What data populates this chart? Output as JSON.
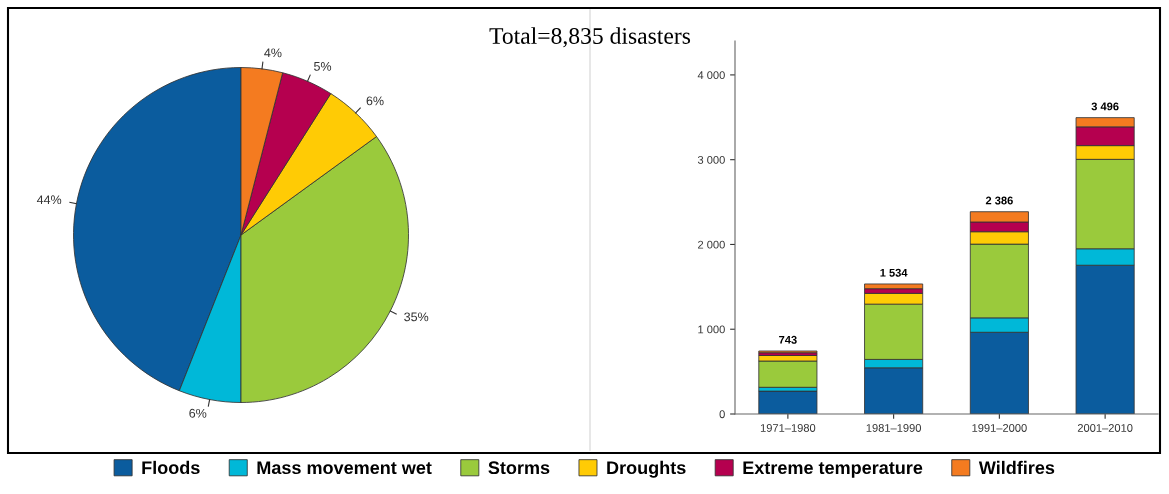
{
  "chart_data": [
    {
      "type": "pie",
      "categories": [
        "Floods",
        "Mass movement wet",
        "Storms",
        "Droughts",
        "Extreme temperature",
        "Wildfires"
      ],
      "values": [
        44,
        6,
        35,
        6,
        5,
        4
      ],
      "colors": [
        "#0b5c9e",
        "#00b8d8",
        "#9aca3c",
        "#ffcb05",
        "#b5004f",
        "#f47b20"
      ],
      "value_labels": [
        "44%",
        "6%",
        "35%",
        "6%",
        "5%",
        "4%"
      ],
      "legend": "bottom"
    },
    {
      "type": "bar",
      "title": "Total=8,835 disasters",
      "stacked": true,
      "categories": [
        "1971–1980",
        "1981–1990",
        "1991–2000",
        "2001–2010"
      ],
      "series": [
        {
          "color": "#0b5c9e",
          "values": [
            270,
            545,
            964,
            1755
          ]
        },
        {
          "color": "#00b8d8",
          "values": [
            45,
            99,
            170,
            194
          ]
        },
        {
          "color": "#9aca3c",
          "values": [
            310,
            652,
            870,
            1055
          ]
        },
        {
          "color": "#ffcb05",
          "values": [
            65,
            127,
            146,
            162
          ]
        },
        {
          "color": "#b5004f",
          "values": [
            33,
            55,
            115,
            221
          ]
        },
        {
          "color": "#f47b20",
          "values": [
            20,
            56,
            121,
            109
          ]
        }
      ],
      "totals": [
        "743",
        "1 534",
        "2 386",
        "3 496"
      ],
      "ylim": [
        0,
        4400
      ],
      "yticks": [
        0,
        {
          "value": 1000,
          "label": "1 000"
        },
        {
          "value": 2000,
          "label": "2 000"
        },
        {
          "value": 3000,
          "label": "3 000"
        },
        {
          "value": 4000,
          "label": "4 000"
        }
      ],
      "grid": false
    }
  ]
}
